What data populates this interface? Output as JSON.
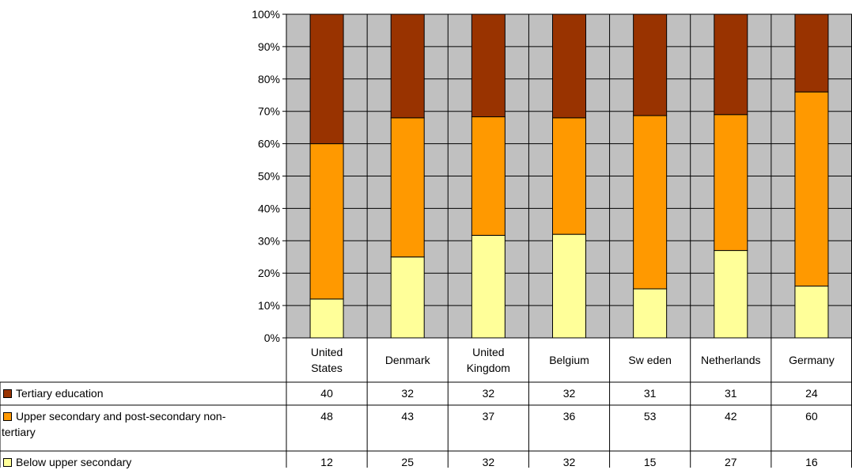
{
  "chart_data": {
    "type": "bar",
    "stacked": true,
    "percent_stacked": true,
    "categories": [
      "United States",
      "Denmark",
      "United Kingdom",
      "Belgium",
      "Sweden",
      "Netherlands",
      "Germany"
    ],
    "category_labels": [
      [
        "United",
        "States"
      ],
      [
        "Denmark"
      ],
      [
        "United",
        "Kingdom"
      ],
      [
        "Belgium"
      ],
      [
        "Sw eden"
      ],
      [
        "Netherlands"
      ],
      [
        "Germany"
      ]
    ],
    "series": [
      {
        "name": "Below  upper secondary",
        "color": "#ffff99",
        "values": [
          12,
          25,
          32,
          32,
          15,
          27,
          16
        ]
      },
      {
        "name": "Upper secondary and post-secondary non-tertiary",
        "color": "#ff9900",
        "values": [
          48,
          43,
          37,
          36,
          53,
          42,
          60
        ]
      },
      {
        "name": "Tertiary education",
        "color": "#993300",
        "values": [
          40,
          32,
          32,
          32,
          31,
          31,
          24
        ]
      }
    ],
    "table_series_order": [
      2,
      1,
      0
    ],
    "legend_lines": [
      [
        "Tertiary education"
      ],
      [
        "Upper secondary and post-secondary non-",
        "tertiary"
      ],
      [
        "Below  upper secondary"
      ]
    ],
    "ylim": [
      0,
      100
    ],
    "yticks": [
      "0%",
      "10%",
      "20%",
      "30%",
      "40%",
      "50%",
      "60%",
      "70%",
      "80%",
      "90%",
      "100%"
    ],
    "plot_background": "#c0c0c0",
    "grid": true,
    "legend_placement": "data-table-left"
  }
}
